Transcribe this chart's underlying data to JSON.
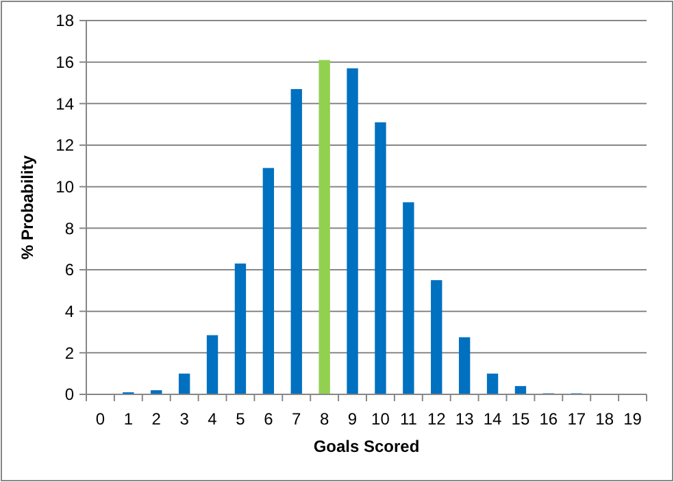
{
  "chart_data": {
    "type": "bar",
    "xlabel": "Goals Scored",
    "ylabel": "% Probability",
    "categories": [
      "0",
      "1",
      "2",
      "3",
      "4",
      "5",
      "6",
      "7",
      "8",
      "9",
      "10",
      "11",
      "12",
      "13",
      "14",
      "15",
      "16",
      "17",
      "18",
      "19"
    ],
    "values": [
      0,
      0.1,
      0.2,
      1.0,
      2.85,
      6.3,
      10.9,
      14.7,
      16.1,
      15.7,
      13.1,
      9.25,
      5.5,
      2.75,
      1.0,
      0.4,
      0.05,
      0.05,
      0,
      0
    ],
    "colors": [
      "#0070c0",
      "#0070c0",
      "#0070c0",
      "#0070c0",
      "#0070c0",
      "#0070c0",
      "#0070c0",
      "#0070c0",
      "#92d050",
      "#0070c0",
      "#0070c0",
      "#0070c0",
      "#0070c0",
      "#0070c0",
      "#0070c0",
      "#0070c0",
      "#0070c0",
      "#0070c0",
      "#0070c0",
      "#0070c0"
    ],
    "ylim": [
      0,
      18
    ],
    "yticks": [
      0,
      2,
      4,
      6,
      8,
      10,
      12,
      14,
      16,
      18
    ],
    "grid": "y"
  }
}
